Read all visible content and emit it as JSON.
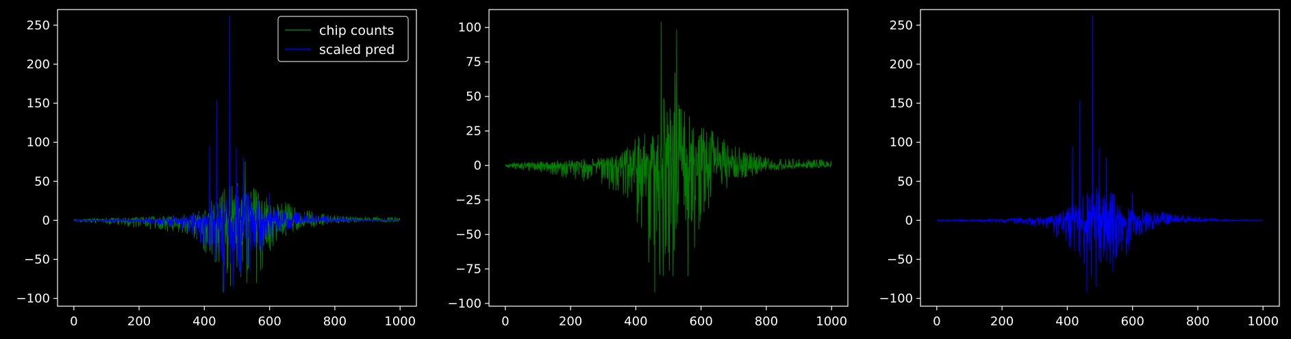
{
  "figure": {
    "background": "#000000",
    "foreground": "#ffffff"
  },
  "chart_data": [
    {
      "type": "line",
      "xlim": [
        -50,
        1050
      ],
      "ylim": [
        -110,
        270
      ],
      "xticks": [
        0,
        200,
        400,
        600,
        800,
        1000
      ],
      "yticks": [
        -100,
        -50,
        0,
        50,
        100,
        150,
        200,
        250
      ],
      "legend": {
        "position": "top-right",
        "entries": [
          "chip counts",
          "scaled pred"
        ]
      },
      "series": [
        {
          "name": "chip counts",
          "color": "#008000",
          "n_points": 1000,
          "envelope": [
            [
              0,
              1.5,
              -1.5
            ],
            [
              100,
              3,
              -5
            ],
            [
              200,
              4,
              -10
            ],
            [
              300,
              6,
              -15
            ],
            [
              350,
              8,
              -20
            ],
            [
              380,
              15,
              -30
            ],
            [
              420,
              25,
              -50
            ],
            [
              460,
              40,
              -70
            ],
            [
              480,
              50,
              -90
            ],
            [
              520,
              50,
              -90
            ],
            [
              560,
              40,
              -80
            ],
            [
              600,
              30,
              -40
            ],
            [
              640,
              25,
              -25
            ],
            [
              700,
              15,
              -12
            ],
            [
              800,
              6,
              -4
            ],
            [
              900,
              5,
              -2
            ],
            [
              1000,
              5,
              -2
            ]
          ],
          "spikes": [
            [
              478,
              60
            ],
            [
              525,
              75
            ],
            [
              560,
              -80
            ],
            [
              458,
              -92
            ],
            [
              500,
              -60
            ]
          ]
        },
        {
          "name": "scaled pred",
          "color": "#0000ff",
          "n_points": 1000,
          "envelope": [
            [
              0,
              1,
              -1
            ],
            [
              100,
              1,
              -2
            ],
            [
              200,
              2,
              -3
            ],
            [
              300,
              4,
              -8
            ],
            [
              350,
              6,
              -15
            ],
            [
              400,
              15,
              -35
            ],
            [
              440,
              30,
              -55
            ],
            [
              470,
              45,
              -75
            ],
            [
              500,
              45,
              -75
            ],
            [
              540,
              35,
              -60
            ],
            [
              580,
              25,
              -45
            ],
            [
              620,
              15,
              -20
            ],
            [
              700,
              10,
              -5
            ],
            [
              800,
              4,
              -2
            ],
            [
              900,
              1,
              -1
            ],
            [
              1000,
              0.5,
              -0.5
            ]
          ],
          "spikes": [
            [
              478,
              262
            ],
            [
              438,
              153
            ],
            [
              416,
              95
            ],
            [
              498,
              93
            ],
            [
              520,
              80
            ],
            [
              460,
              -92
            ],
            [
              488,
              -85
            ],
            [
              540,
              -65
            ],
            [
              600,
              35
            ]
          ]
        }
      ]
    },
    {
      "type": "line",
      "xlim": [
        -50,
        1050
      ],
      "ylim": [
        -102,
        113
      ],
      "xticks": [
        0,
        200,
        400,
        600,
        800,
        1000
      ],
      "yticks": [
        -100,
        -75,
        -50,
        -25,
        0,
        25,
        50,
        75,
        100
      ],
      "series": [
        {
          "color": "#008000",
          "n_points": 1000,
          "envelope": [
            [
              0,
              1.5,
              -1.5
            ],
            [
              100,
              3,
              -5
            ],
            [
              200,
              4,
              -10
            ],
            [
              300,
              6,
              -15
            ],
            [
              350,
              8,
              -20
            ],
            [
              380,
              15,
              -30
            ],
            [
              420,
              25,
              -50
            ],
            [
              460,
              40,
              -70
            ],
            [
              480,
              50,
              -90
            ],
            [
              520,
              50,
              -90
            ],
            [
              560,
              40,
              -80
            ],
            [
              600,
              30,
              -40
            ],
            [
              640,
              25,
              -25
            ],
            [
              700,
              15,
              -12
            ],
            [
              800,
              6,
              -4
            ],
            [
              900,
              5,
              -2
            ],
            [
              1000,
              5,
              -2
            ]
          ],
          "spikes": [
            [
              478,
              104
            ],
            [
              525,
              98
            ],
            [
              520,
              67
            ],
            [
              560,
              -80
            ],
            [
              458,
              -92
            ],
            [
              500,
              -63
            ],
            [
              440,
              -70
            ]
          ]
        }
      ]
    },
    {
      "type": "line",
      "xlim": [
        -50,
        1050
      ],
      "ylim": [
        -110,
        270
      ],
      "xticks": [
        0,
        200,
        400,
        600,
        800,
        1000
      ],
      "yticks": [
        -100,
        -50,
        0,
        50,
        100,
        150,
        200,
        250
      ],
      "series": [
        {
          "color": "#0000ff",
          "n_points": 1000,
          "envelope": [
            [
              0,
              1,
              -1
            ],
            [
              100,
              1,
              -2
            ],
            [
              200,
              2,
              -3
            ],
            [
              300,
              4,
              -8
            ],
            [
              350,
              6,
              -15
            ],
            [
              400,
              15,
              -35
            ],
            [
              440,
              30,
              -55
            ],
            [
              470,
              45,
              -75
            ],
            [
              500,
              45,
              -75
            ],
            [
              540,
              35,
              -60
            ],
            [
              580,
              25,
              -45
            ],
            [
              620,
              15,
              -20
            ],
            [
              700,
              10,
              -5
            ],
            [
              800,
              4,
              -2
            ],
            [
              900,
              1,
              -1
            ],
            [
              1000,
              0.5,
              -0.5
            ]
          ],
          "spikes": [
            [
              478,
              262
            ],
            [
              438,
              153
            ],
            [
              416,
              95
            ],
            [
              498,
              93
            ],
            [
              520,
              80
            ],
            [
              460,
              -92
            ],
            [
              488,
              -85
            ],
            [
              540,
              -65
            ],
            [
              600,
              35
            ]
          ]
        }
      ]
    }
  ]
}
